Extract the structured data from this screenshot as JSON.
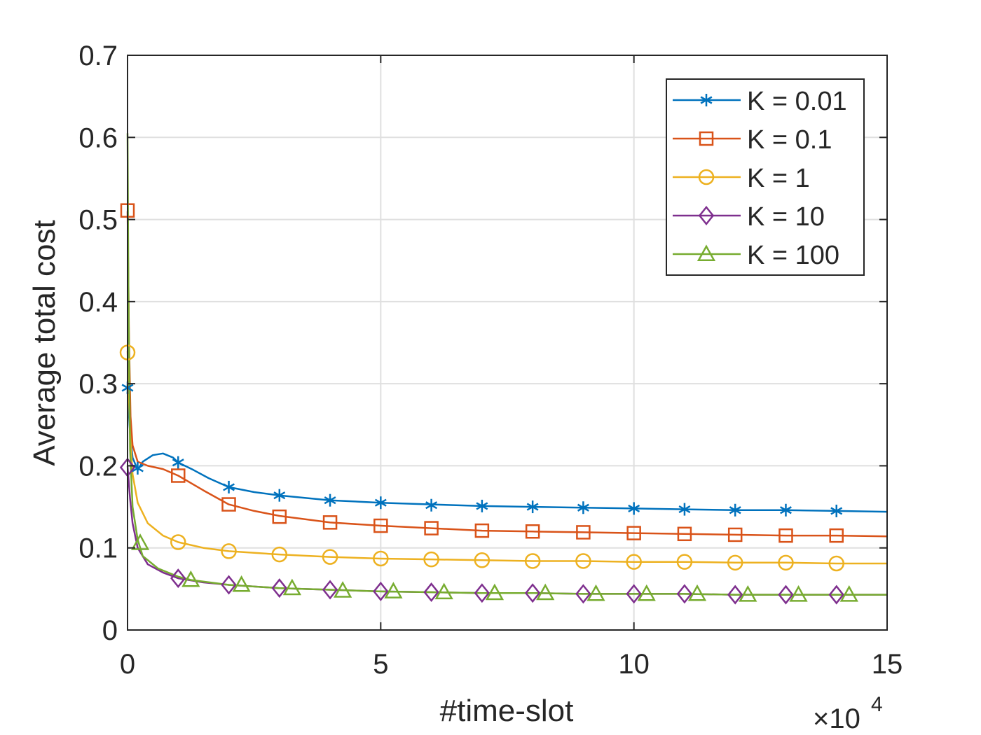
{
  "chart_data": {
    "type": "line",
    "title": "",
    "xlabel": "#time-slot",
    "ylabel": "Average total cost",
    "xlim": [
      0,
      15
    ],
    "ylim": [
      0,
      0.7
    ],
    "x_ticks": [
      "0",
      "5",
      "10",
      "15"
    ],
    "y_ticks": [
      "0",
      "0.1",
      "0.2",
      "0.3",
      "0.4",
      "0.5",
      "0.6",
      "0.7"
    ],
    "x_exponent_base": "×10",
    "x_exponent_power": "4",
    "grid": true,
    "legend_position": "top-right",
    "series": [
      {
        "name": "K = 0.01",
        "color": "#0072BD",
        "marker": "asterisk",
        "points": [
          [
            0,
            0.29
          ],
          [
            0.05,
            0.24
          ],
          [
            0.1,
            0.21
          ],
          [
            0.2,
            0.195
          ],
          [
            0.3,
            0.205
          ],
          [
            0.5,
            0.213
          ],
          [
            0.7,
            0.215
          ],
          [
            0.9,
            0.21
          ],
          [
            1,
            0.204
          ],
          [
            1.3,
            0.195
          ],
          [
            1.6,
            0.185
          ],
          [
            2,
            0.174
          ],
          [
            2.5,
            0.168
          ],
          [
            3,
            0.164
          ],
          [
            4,
            0.158
          ],
          [
            5,
            0.155
          ],
          [
            6,
            0.153
          ],
          [
            7,
            0.151
          ],
          [
            8,
            0.15
          ],
          [
            9,
            0.149
          ],
          [
            10,
            0.148
          ],
          [
            11,
            0.147
          ],
          [
            12,
            0.146
          ],
          [
            13,
            0.146
          ],
          [
            14,
            0.145
          ],
          [
            15,
            0.144
          ]
        ],
        "marker_points": [
          [
            0,
            0.295
          ],
          [
            0.2,
            0.197
          ],
          [
            1,
            0.204
          ],
          [
            2,
            0.174
          ],
          [
            3,
            0.164
          ],
          [
            4,
            0.158
          ],
          [
            5,
            0.155
          ],
          [
            6,
            0.152
          ],
          [
            7,
            0.151
          ],
          [
            8,
            0.15
          ],
          [
            9,
            0.149
          ],
          [
            10,
            0.148
          ],
          [
            11,
            0.147
          ],
          [
            12,
            0.146
          ],
          [
            13,
            0.146
          ],
          [
            14,
            0.145
          ]
        ]
      },
      {
        "name": "K = 0.1",
        "color": "#D95319",
        "marker": "square",
        "points": [
          [
            0,
            0.51
          ],
          [
            0.03,
            0.35
          ],
          [
            0.06,
            0.26
          ],
          [
            0.1,
            0.225
          ],
          [
            0.2,
            0.205
          ],
          [
            0.4,
            0.2
          ],
          [
            0.7,
            0.196
          ],
          [
            1,
            0.188
          ],
          [
            1.5,
            0.17
          ],
          [
            2,
            0.153
          ],
          [
            2.5,
            0.145
          ],
          [
            3,
            0.139
          ],
          [
            4,
            0.131
          ],
          [
            5,
            0.127
          ],
          [
            6,
            0.124
          ],
          [
            7,
            0.121
          ],
          [
            8,
            0.12
          ],
          [
            9,
            0.119
          ],
          [
            10,
            0.118
          ],
          [
            11,
            0.117
          ],
          [
            12,
            0.116
          ],
          [
            13,
            0.115
          ],
          [
            14,
            0.115
          ],
          [
            15,
            0.114
          ]
        ],
        "marker_points": [
          [
            0,
            0.511
          ],
          [
            1,
            0.188
          ],
          [
            2,
            0.153
          ],
          [
            3,
            0.138
          ],
          [
            4,
            0.131
          ],
          [
            5,
            0.127
          ],
          [
            6,
            0.124
          ],
          [
            7,
            0.121
          ],
          [
            8,
            0.12
          ],
          [
            9,
            0.119
          ],
          [
            10,
            0.118
          ],
          [
            11,
            0.117
          ],
          [
            12,
            0.116
          ],
          [
            13,
            0.115
          ],
          [
            14,
            0.115
          ]
        ]
      },
      {
        "name": "K = 1",
        "color": "#EDB120",
        "marker": "circle",
        "points": [
          [
            0,
            0.34
          ],
          [
            0.05,
            0.24
          ],
          [
            0.1,
            0.19
          ],
          [
            0.2,
            0.155
          ],
          [
            0.4,
            0.13
          ],
          [
            0.7,
            0.115
          ],
          [
            1,
            0.107
          ],
          [
            1.5,
            0.1
          ],
          [
            2,
            0.096
          ],
          [
            3,
            0.092
          ],
          [
            4,
            0.089
          ],
          [
            5,
            0.087
          ],
          [
            6,
            0.086
          ],
          [
            7,
            0.085
          ],
          [
            8,
            0.084
          ],
          [
            9,
            0.084
          ],
          [
            10,
            0.083
          ],
          [
            11,
            0.083
          ],
          [
            12,
            0.082
          ],
          [
            13,
            0.082
          ],
          [
            14,
            0.081
          ],
          [
            15,
            0.081
          ]
        ],
        "marker_points": [
          [
            0,
            0.338
          ],
          [
            1,
            0.107
          ],
          [
            2,
            0.096
          ],
          [
            3,
            0.092
          ],
          [
            4,
            0.089
          ],
          [
            5,
            0.087
          ],
          [
            6,
            0.086
          ],
          [
            7,
            0.085
          ],
          [
            8,
            0.084
          ],
          [
            9,
            0.084
          ],
          [
            10,
            0.083
          ],
          [
            11,
            0.083
          ],
          [
            12,
            0.082
          ],
          [
            13,
            0.082
          ],
          [
            14,
            0.081
          ]
        ]
      },
      {
        "name": "K = 10",
        "color": "#7E2F8E",
        "marker": "diamond",
        "points": [
          [
            0,
            0.2
          ],
          [
            0.05,
            0.16
          ],
          [
            0.1,
            0.13
          ],
          [
            0.2,
            0.1
          ],
          [
            0.4,
            0.08
          ],
          [
            0.7,
            0.07
          ],
          [
            1,
            0.063
          ],
          [
            1.5,
            0.058
          ],
          [
            2,
            0.055
          ],
          [
            3,
            0.051
          ],
          [
            4,
            0.049
          ],
          [
            5,
            0.047
          ],
          [
            6,
            0.046
          ],
          [
            7,
            0.045
          ],
          [
            8,
            0.045
          ],
          [
            9,
            0.044
          ],
          [
            10,
            0.044
          ],
          [
            11,
            0.044
          ],
          [
            12,
            0.043
          ],
          [
            13,
            0.043
          ],
          [
            14,
            0.043
          ],
          [
            15,
            0.043
          ]
        ],
        "marker_points": [
          [
            0,
            0.198
          ],
          [
            1,
            0.063
          ],
          [
            2,
            0.055
          ],
          [
            3,
            0.051
          ],
          [
            4,
            0.049
          ],
          [
            5,
            0.047
          ],
          [
            6,
            0.046
          ],
          [
            7,
            0.045
          ],
          [
            8,
            0.045
          ],
          [
            9,
            0.044
          ],
          [
            10,
            0.044
          ],
          [
            11,
            0.044
          ],
          [
            12,
            0.043
          ],
          [
            13,
            0.043
          ],
          [
            14,
            0.043
          ]
        ]
      },
      {
        "name": "K = 100",
        "color": "#77AC30",
        "marker": "triangle",
        "points": [
          [
            0,
            0.605
          ],
          [
            0.02,
            0.4
          ],
          [
            0.05,
            0.22
          ],
          [
            0.1,
            0.15
          ],
          [
            0.2,
            0.11
          ],
          [
            0.3,
            0.09
          ],
          [
            0.6,
            0.075
          ],
          [
            1,
            0.065
          ],
          [
            1.25,
            0.061
          ],
          [
            2,
            0.055
          ],
          [
            2.25,
            0.054
          ],
          [
            3,
            0.051
          ],
          [
            4,
            0.049
          ],
          [
            5,
            0.047
          ],
          [
            6,
            0.046
          ],
          [
            7,
            0.045
          ],
          [
            8,
            0.045
          ],
          [
            9,
            0.044
          ],
          [
            10,
            0.044
          ],
          [
            11,
            0.044
          ],
          [
            12,
            0.043
          ],
          [
            13,
            0.043
          ],
          [
            14,
            0.043
          ],
          [
            15,
            0.043
          ]
        ],
        "marker_points": [
          [
            0.25,
            0.106
          ],
          [
            1.25,
            0.061
          ],
          [
            2.25,
            0.055
          ],
          [
            3.25,
            0.051
          ],
          [
            4.25,
            0.048
          ],
          [
            5.25,
            0.047
          ],
          [
            6.25,
            0.046
          ],
          [
            7.25,
            0.045
          ],
          [
            8.25,
            0.045
          ],
          [
            9.25,
            0.044
          ],
          [
            10.25,
            0.044
          ],
          [
            11.25,
            0.044
          ],
          [
            12.25,
            0.043
          ],
          [
            13.25,
            0.043
          ],
          [
            14.25,
            0.043
          ]
        ]
      }
    ]
  }
}
